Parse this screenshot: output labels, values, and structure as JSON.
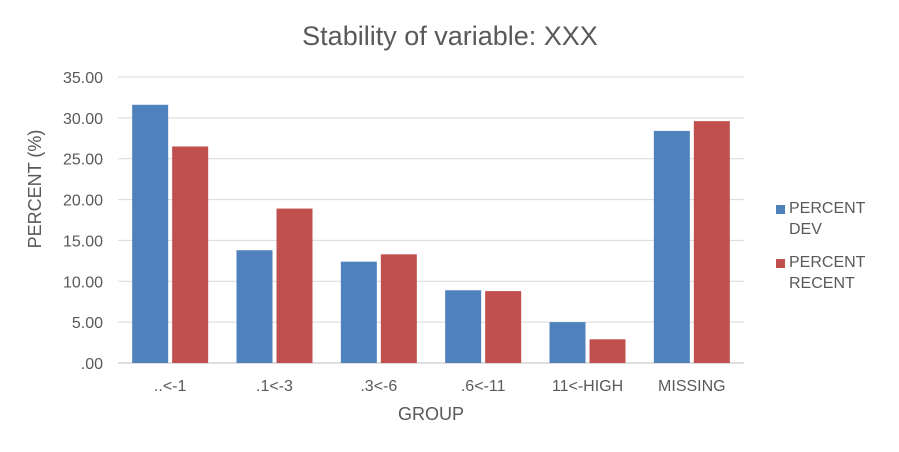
{
  "chart_data": {
    "type": "bar",
    "title": "Stability of variable: XXX",
    "xlabel": "GROUP",
    "ylabel": "PERCENT (%)",
    "categories": [
      "..<-1",
      ".1<-3",
      ".3<-6",
      ".6<-11",
      "11<-HIGH",
      "MISSING"
    ],
    "series": [
      {
        "name": "PERCENT DEV",
        "color": "#4f81bd",
        "values": [
          31.6,
          13.8,
          12.4,
          8.9,
          5.0,
          28.4
        ]
      },
      {
        "name": "PERCENT RECENT",
        "color": "#c0504d",
        "values": [
          26.5,
          18.9,
          13.3,
          8.8,
          2.9,
          29.6
        ]
      }
    ],
    "ylim": [
      0,
      35
    ],
    "yticks": [
      ".00",
      "5.00",
      "10.00",
      "15.00",
      "20.00",
      "25.00",
      "30.00",
      "35.00"
    ],
    "ytick_values": [
      0,
      5,
      10,
      15,
      20,
      25,
      30,
      35
    ],
    "legend": {
      "position": "right",
      "entries": [
        {
          "lines": [
            "PERCENT",
            "DEV"
          ]
        },
        {
          "lines": [
            "PERCENT",
            "RECENT"
          ]
        }
      ]
    },
    "grid": true
  }
}
